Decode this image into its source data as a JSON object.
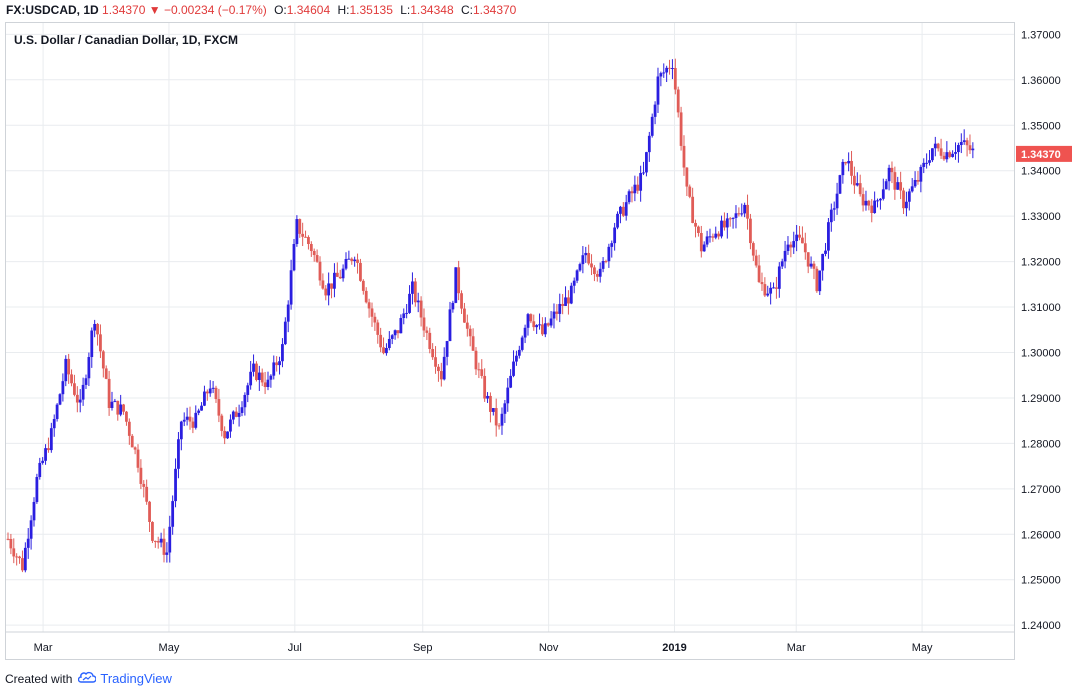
{
  "header": {
    "symbol": "FX:USDCAD, 1D",
    "last": "1.34370",
    "change": "−0.00234 (−0.17%)",
    "o_label": "O:",
    "o_value": "1.34604",
    "h_label": "H:",
    "h_value": "1.35135",
    "l_label": "L:",
    "l_value": "1.34348",
    "c_label": "C:",
    "c_value": "1.34370"
  },
  "footer": {
    "created_with": "Created with",
    "brand": "TradingView"
  },
  "colors": {
    "up": "#2a1ee0",
    "down": "#e05c57",
    "grid": "#e9ecef",
    "price_tag": "#ef5350",
    "axis_text": "#131722"
  },
  "chart_data": {
    "type": "candlestick",
    "title": "U.S. Dollar / Canadian Dollar, 1D, FXCM",
    "ylim": [
      1.2385,
      1.3725
    ],
    "y_ticks": [
      "1.24000",
      "1.25000",
      "1.26000",
      "1.27000",
      "1.28000",
      "1.29000",
      "1.30000",
      "1.31000",
      "1.32000",
      "1.33000",
      "1.34000",
      "1.35000",
      "1.36000",
      "1.37000"
    ],
    "x_ticks": [
      "Mar",
      "May",
      "Jul",
      "Sep",
      "Nov",
      "2019",
      "Mar",
      "May"
    ],
    "last_price_label": "1.34370",
    "grid": true,
    "series": [
      {
        "t": "2018-02-12",
        "c": 1.259
      },
      {
        "t": "2018-02-19",
        "c": 1.253
      },
      {
        "t": "2018-02-26",
        "c": 1.272
      },
      {
        "t": "2018-03-05",
        "c": 1.282
      },
      {
        "t": "2018-03-12",
        "c": 1.297
      },
      {
        "t": "2018-03-19",
        "c": 1.288
      },
      {
        "t": "2018-03-26",
        "c": 1.308
      },
      {
        "t": "2018-04-02",
        "c": 1.289
      },
      {
        "t": "2018-04-09",
        "c": 1.287
      },
      {
        "t": "2018-04-16",
        "c": 1.276
      },
      {
        "t": "2018-04-23",
        "c": 1.26
      },
      {
        "t": "2018-04-30",
        "c": 1.256
      },
      {
        "t": "2018-05-07",
        "c": 1.285
      },
      {
        "t": "2018-05-14",
        "c": 1.285
      },
      {
        "t": "2018-05-21",
        "c": 1.293
      },
      {
        "t": "2018-05-28",
        "c": 1.282
      },
      {
        "t": "2018-06-04",
        "c": 1.288
      },
      {
        "t": "2018-06-11",
        "c": 1.296
      },
      {
        "t": "2018-06-18",
        "c": 1.293
      },
      {
        "t": "2018-06-25",
        "c": 1.301
      },
      {
        "t": "2018-07-02",
        "c": 1.328
      },
      {
        "t": "2018-07-09",
        "c": 1.323
      },
      {
        "t": "2018-07-16",
        "c": 1.314
      },
      {
        "t": "2018-07-23",
        "c": 1.317
      },
      {
        "t": "2018-07-30",
        "c": 1.322
      },
      {
        "t": "2018-08-06",
        "c": 1.31
      },
      {
        "t": "2018-08-13",
        "c": 1.3
      },
      {
        "t": "2018-08-20",
        "c": 1.305
      },
      {
        "t": "2018-08-27",
        "c": 1.314
      },
      {
        "t": "2018-09-03",
        "c": 1.304
      },
      {
        "t": "2018-09-10",
        "c": 1.295
      },
      {
        "t": "2018-09-17",
        "c": 1.317
      },
      {
        "t": "2018-09-24",
        "c": 1.302
      },
      {
        "t": "2018-10-01",
        "c": 1.291
      },
      {
        "t": "2018-10-08",
        "c": 1.283
      },
      {
        "t": "2018-10-15",
        "c": 1.297
      },
      {
        "t": "2018-10-22",
        "c": 1.309
      },
      {
        "t": "2018-10-29",
        "c": 1.304
      },
      {
        "t": "2018-11-05",
        "c": 1.309
      },
      {
        "t": "2018-11-12",
        "c": 1.313
      },
      {
        "t": "2018-11-19",
        "c": 1.322
      },
      {
        "t": "2018-11-26",
        "c": 1.317
      },
      {
        "t": "2018-12-03",
        "c": 1.328
      },
      {
        "t": "2018-12-10",
        "c": 1.334
      },
      {
        "t": "2018-12-17",
        "c": 1.339
      },
      {
        "t": "2018-12-24",
        "c": 1.36
      },
      {
        "t": "2018-12-31",
        "c": 1.364
      },
      {
        "t": "2019-01-07",
        "c": 1.335
      },
      {
        "t": "2019-01-14",
        "c": 1.323
      },
      {
        "t": "2019-01-21",
        "c": 1.327
      },
      {
        "t": "2019-01-28",
        "c": 1.328
      },
      {
        "t": "2019-02-04",
        "c": 1.333
      },
      {
        "t": "2019-02-11",
        "c": 1.315
      },
      {
        "t": "2019-02-18",
        "c": 1.313
      },
      {
        "t": "2019-02-25",
        "c": 1.325
      },
      {
        "t": "2019-03-04",
        "c": 1.324
      },
      {
        "t": "2019-03-11",
        "c": 1.315
      },
      {
        "t": "2019-03-18",
        "c": 1.33
      },
      {
        "t": "2019-03-25",
        "c": 1.343
      },
      {
        "t": "2019-04-01",
        "c": 1.334
      },
      {
        "t": "2019-04-08",
        "c": 1.332
      },
      {
        "t": "2019-04-15",
        "c": 1.34
      },
      {
        "t": "2019-04-22",
        "c": 1.333
      },
      {
        "t": "2019-04-29",
        "c": 1.338
      },
      {
        "t": "2019-05-06",
        "c": 1.345
      },
      {
        "t": "2019-05-13",
        "c": 1.344
      },
      {
        "t": "2019-05-20",
        "c": 1.346
      },
      {
        "t": "2019-05-27",
        "c": 1.3437
      }
    ]
  }
}
